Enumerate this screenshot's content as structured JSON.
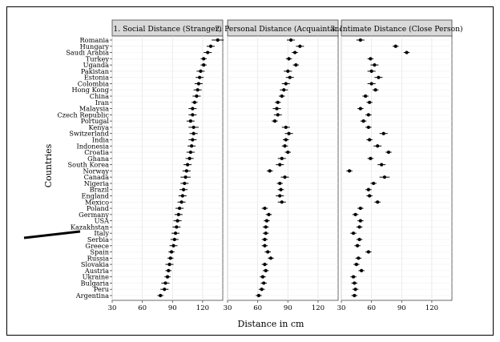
{
  "chart_data": {
    "type": "scatter",
    "subtype": "dot-with-error-bars (faceted)",
    "xlabel": "Distance in cm",
    "ylabel": "Countries",
    "xlim": [
      30,
      140
    ],
    "x_ticks": [
      30,
      60,
      90,
      120
    ],
    "grid": true,
    "legend": "none",
    "marker_color": "#000000",
    "panel_header_color": "#d9d9d9",
    "countries": [
      "Romania",
      "Hungary",
      "Saudi Arabia",
      "Turkey",
      "Uganda",
      "Pakistan",
      "Estonia",
      "Colombia",
      "Hong Kong",
      "China",
      "Iran",
      "Malaysia",
      "Czech Republic",
      "Portugal",
      "Kenya",
      "Switzerland",
      "India",
      "Indonesia",
      "Croatia",
      "Ghana",
      "South Korea",
      "Norway",
      "Canada",
      "Nigeria",
      "Brazil",
      "England",
      "Mexico",
      "Poland",
      "Germany",
      "USA",
      "Kazakhstan",
      "Italy",
      "Serbia",
      "Greece",
      "Spain",
      "Russia",
      "Slovakia",
      "Austria",
      "Ukraine",
      "Bulgaria",
      "Peru",
      "Argentina"
    ],
    "panels": [
      {
        "title": "1. Social Distance (Stranger)",
        "values": [
          135,
          128,
          125,
          121,
          121,
          118,
          117,
          116,
          115,
          114,
          112,
          110,
          110,
          108,
          111,
          111,
          110,
          109,
          108,
          107,
          105,
          104,
          103,
          102,
          101,
          100,
          99,
          97,
          96,
          95,
          94,
          93,
          92,
          91,
          89,
          88,
          87,
          86,
          85,
          83,
          82,
          78
        ],
        "errors": [
          6,
          4,
          4,
          3,
          3,
          4,
          4,
          4,
          4,
          4,
          3,
          4,
          4,
          4,
          5,
          4,
          4,
          4,
          4,
          4,
          4,
          4,
          5,
          4,
          4,
          4,
          4,
          4,
          4,
          4,
          4,
          4,
          4,
          4,
          3,
          3,
          4,
          3,
          3,
          4,
          4,
          3
        ]
      },
      {
        "title": "2. Personal Distance (Acquaintance)",
        "values": [
          93,
          102,
          97,
          91,
          98,
          90,
          92,
          88,
          86,
          84,
          80,
          79,
          80,
          77,
          88,
          91,
          88,
          87,
          90,
          84,
          82,
          72,
          87,
          82,
          83,
          82,
          84,
          67,
          71,
          69,
          68,
          68,
          67,
          67,
          70,
          73,
          67,
          68,
          65,
          66,
          64,
          61
        ],
        "errors": [
          4,
          4,
          3,
          3,
          3,
          4,
          4,
          4,
          4,
          3,
          3,
          4,
          4,
          3,
          4,
          4,
          3,
          3,
          3,
          4,
          4,
          3,
          4,
          3,
          3,
          4,
          4,
          3,
          3,
          3,
          3,
          3,
          3,
          3,
          3,
          3,
          3,
          3,
          3,
          3,
          3,
          3
        ]
      },
      {
        "title": "3. Intimate Distance (Close Person)",
        "values": [
          49,
          84,
          95,
          59,
          63,
          60,
          67,
          60,
          64,
          54,
          58,
          49,
          57,
          52,
          57,
          72,
          58,
          66,
          77,
          59,
          70,
          38,
          73,
          62,
          57,
          58,
          66,
          49,
          44,
          49,
          48,
          42,
          48,
          46,
          57,
          47,
          45,
          50,
          42,
          43,
          44,
          43
        ],
        "errors": [
          4,
          3,
          3,
          3,
          4,
          4,
          4,
          4,
          3,
          3,
          3,
          3,
          3,
          3,
          3,
          4,
          3,
          4,
          3,
          3,
          4,
          3,
          5,
          3,
          3,
          3,
          3,
          3,
          3,
          3,
          3,
          3,
          3,
          3,
          3,
          3,
          3,
          3,
          3,
          3,
          3,
          3
        ]
      }
    ]
  }
}
